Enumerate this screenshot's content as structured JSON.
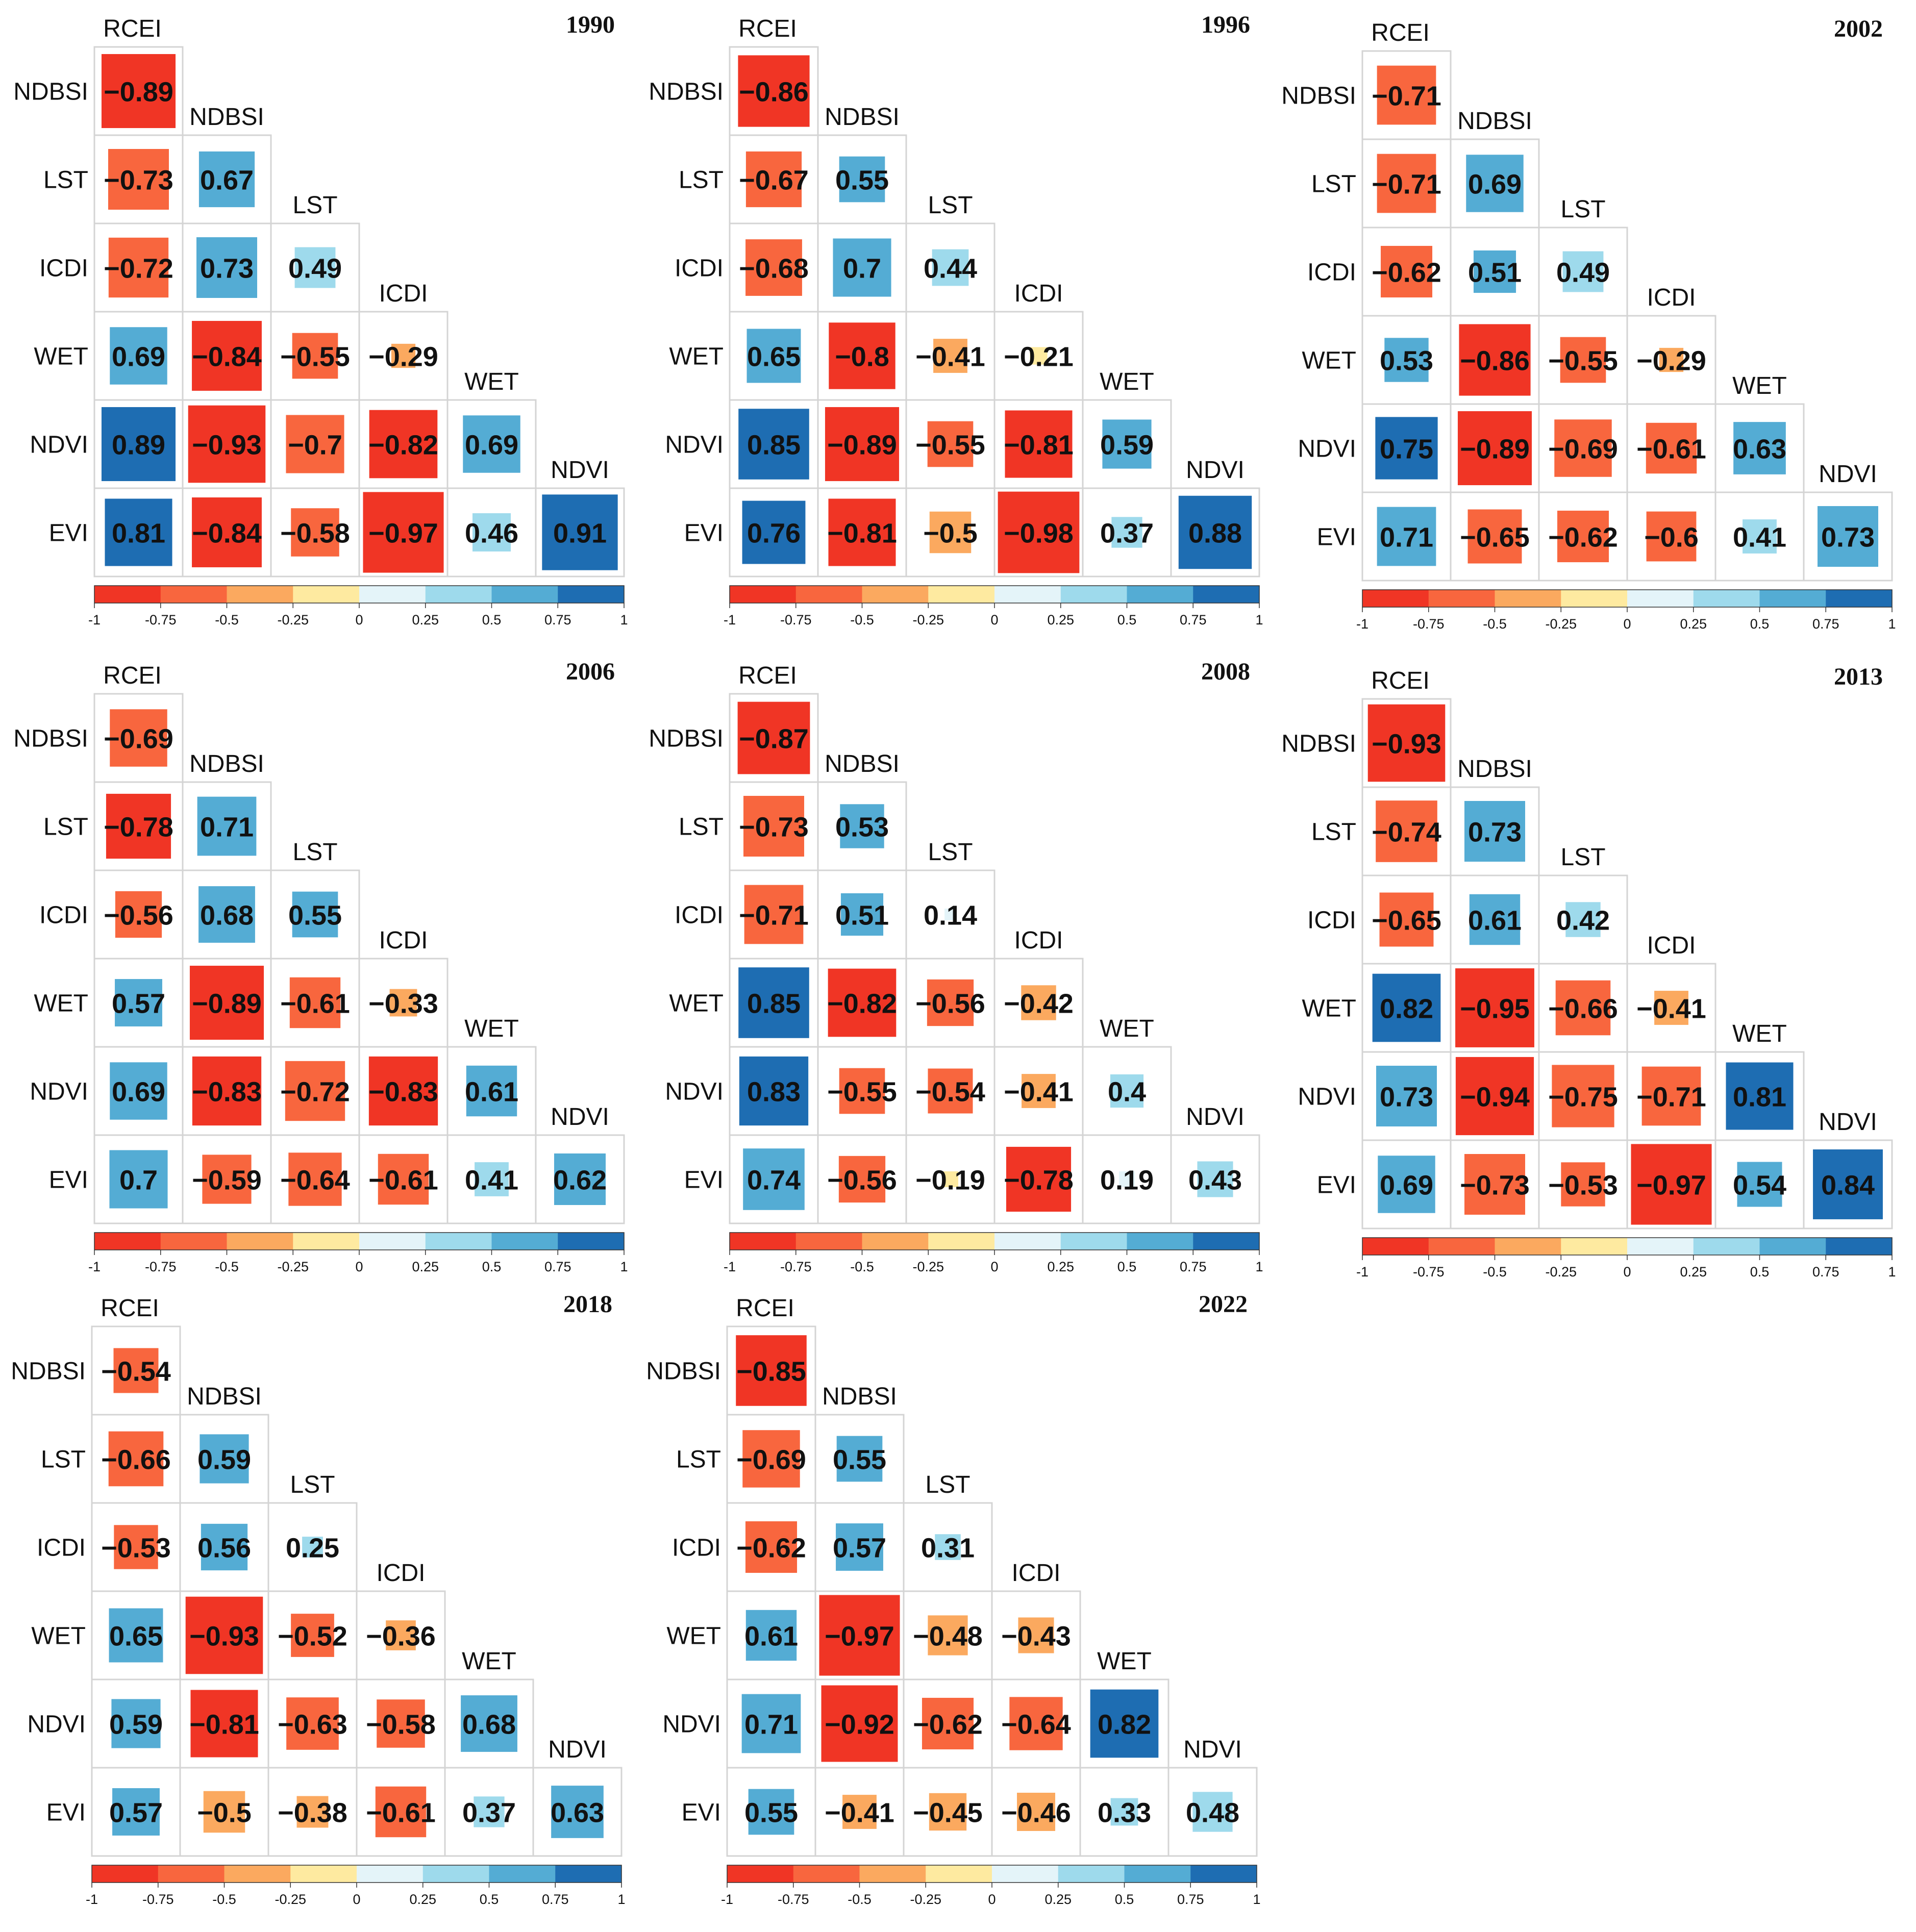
{
  "chart_data": [
    {
      "type": "heatmap",
      "title": "1990",
      "variables": [
        "RCEI",
        "NDBSI",
        "LST",
        "ICDI",
        "WET",
        "NDVI",
        "EVI"
      ],
      "rows": [
        "NDBSI",
        "LST",
        "ICDI",
        "WET",
        "NDVI",
        "EVI"
      ],
      "columns": [
        "RCEI",
        "NDBSI",
        "LST",
        "ICDI",
        "WET",
        "NDVI"
      ],
      "values": [
        [
          -0.89
        ],
        [
          -0.73,
          0.67
        ],
        [
          -0.72,
          0.73,
          0.49
        ],
        [
          0.69,
          -0.84,
          -0.55,
          -0.29
        ],
        [
          0.89,
          -0.93,
          -0.7,
          -0.82,
          0.69
        ],
        [
          0.81,
          -0.84,
          -0.58,
          -0.97,
          0.46,
          0.91
        ]
      ],
      "value_labels": [
        [
          "−0.89"
        ],
        [
          "−0.73",
          "0.67"
        ],
        [
          "−0.72",
          "0.73",
          "0.49"
        ],
        [
          "0.69",
          "−0.84",
          "−0.55",
          "−0.29"
        ],
        [
          "0.89",
          "−0.93",
          "−0.7",
          "−0.82",
          "0.69"
        ],
        [
          "0.81",
          "−0.84",
          "−0.58",
          "−0.97",
          "0.46",
          "0.91"
        ]
      ],
      "colorbar": {
        "range": [
          -1,
          1
        ],
        "ticks": [
          "-1",
          "-0.75",
          "-0.5",
          "-0.25",
          "0",
          "0.25",
          "0.5",
          "0.75",
          "1"
        ],
        "colors": [
          "#f03525",
          "#f8663e",
          "#fba95f",
          "#feeaa0",
          "#e4f4f9",
          "#9edaec",
          "#54acd4",
          "#1e6db2"
        ]
      }
    },
    {
      "type": "heatmap",
      "title": "1996",
      "variables": [
        "RCEI",
        "NDBSI",
        "LST",
        "ICDI",
        "WET",
        "NDVI",
        "EVI"
      ],
      "rows": [
        "NDBSI",
        "LST",
        "ICDI",
        "WET",
        "NDVI",
        "EVI"
      ],
      "columns": [
        "RCEI",
        "NDBSI",
        "LST",
        "ICDI",
        "WET",
        "NDVI"
      ],
      "values": [
        [
          -0.86
        ],
        [
          -0.67,
          0.55
        ],
        [
          -0.68,
          0.7,
          0.44
        ],
        [
          0.65,
          -0.8,
          -0.41,
          -0.21
        ],
        [
          0.85,
          -0.89,
          -0.55,
          -0.81,
          0.59
        ],
        [
          0.76,
          -0.81,
          -0.5,
          -0.98,
          0.37,
          0.88
        ]
      ],
      "value_labels": [
        [
          "−0.86"
        ],
        [
          "−0.67",
          "0.55"
        ],
        [
          "−0.68",
          "0.7",
          "0.44"
        ],
        [
          "0.65",
          "−0.8",
          "−0.41",
          "−0.21"
        ],
        [
          "0.85",
          "−0.89",
          "−0.55",
          "−0.81",
          "0.59"
        ],
        [
          "0.76",
          "−0.81",
          "−0.5",
          "−0.98",
          "0.37",
          "0.88"
        ]
      ],
      "colorbar": {
        "range": [
          -1,
          1
        ],
        "ticks": [
          "-1",
          "-0.75",
          "-0.5",
          "-0.25",
          "0",
          "0.25",
          "0.5",
          "0.75",
          "1"
        ],
        "colors": [
          "#f03525",
          "#f8663e",
          "#fba95f",
          "#feeaa0",
          "#e4f4f9",
          "#9edaec",
          "#54acd4",
          "#1e6db2"
        ]
      }
    },
    {
      "type": "heatmap",
      "title": "2002",
      "variables": [
        "RCEI",
        "NDBSI",
        "LST",
        "ICDI",
        "WET",
        "NDVI",
        "EVI"
      ],
      "rows": [
        "NDBSI",
        "LST",
        "ICDI",
        "WET",
        "NDVI",
        "EVI"
      ],
      "columns": [
        "RCEI",
        "NDBSI",
        "LST",
        "ICDI",
        "WET",
        "NDVI"
      ],
      "values": [
        [
          -0.71
        ],
        [
          -0.71,
          0.69
        ],
        [
          -0.62,
          0.51,
          0.49
        ],
        [
          0.53,
          -0.86,
          -0.55,
          -0.29
        ],
        [
          0.75,
          -0.89,
          -0.69,
          -0.61,
          0.63
        ],
        [
          0.71,
          -0.65,
          -0.62,
          -0.6,
          0.41,
          0.73
        ]
      ],
      "value_labels": [
        [
          "−0.71"
        ],
        [
          "−0.71",
          "0.69"
        ],
        [
          "−0.62",
          "0.51",
          "0.49"
        ],
        [
          "0.53",
          "−0.86",
          "−0.55",
          "−0.29"
        ],
        [
          "0.75",
          "−0.89",
          "−0.69",
          "−0.61",
          "0.63"
        ],
        [
          "0.71",
          "−0.65",
          "−0.62",
          "−0.6",
          "0.41",
          "0.73"
        ]
      ],
      "colorbar": {
        "range": [
          -1,
          1
        ],
        "ticks": [
          "-1",
          "-0.75",
          "-0.5",
          "-0.25",
          "0",
          "0.25",
          "0.5",
          "0.75",
          "1"
        ],
        "colors": [
          "#f03525",
          "#f8663e",
          "#fba95f",
          "#feeaa0",
          "#e4f4f9",
          "#9edaec",
          "#54acd4",
          "#1e6db2"
        ]
      }
    },
    {
      "type": "heatmap",
      "title": "2006",
      "variables": [
        "RCEI",
        "NDBSI",
        "LST",
        "ICDI",
        "WET",
        "NDVI",
        "EVI"
      ],
      "rows": [
        "NDBSI",
        "LST",
        "ICDI",
        "WET",
        "NDVI",
        "EVI"
      ],
      "columns": [
        "RCEI",
        "NDBSI",
        "LST",
        "ICDI",
        "WET",
        "NDVI"
      ],
      "values": [
        [
          -0.69
        ],
        [
          -0.78,
          0.71
        ],
        [
          -0.56,
          0.68,
          0.55
        ],
        [
          0.57,
          -0.89,
          -0.61,
          -0.33
        ],
        [
          0.69,
          -0.83,
          -0.72,
          -0.83,
          0.61
        ],
        [
          0.7,
          -0.59,
          -0.64,
          -0.61,
          0.41,
          0.62
        ]
      ],
      "value_labels": [
        [
          "−0.69"
        ],
        [
          "−0.78",
          "0.71"
        ],
        [
          "−0.56",
          "0.68",
          "0.55"
        ],
        [
          "0.57",
          "−0.89",
          "−0.61",
          "−0.33"
        ],
        [
          "0.69",
          "−0.83",
          "−0.72",
          "−0.83",
          "0.61"
        ],
        [
          "0.7",
          "−0.59",
          "−0.64",
          "−0.61",
          "0.41",
          "0.62"
        ]
      ],
      "colorbar": {
        "range": [
          -1,
          1
        ],
        "ticks": [
          "-1",
          "-0.75",
          "-0.5",
          "-0.25",
          "0",
          "0.25",
          "0.5",
          "0.75",
          "1"
        ],
        "colors": [
          "#f03525",
          "#f8663e",
          "#fba95f",
          "#feeaa0",
          "#e4f4f9",
          "#9edaec",
          "#54acd4",
          "#1e6db2"
        ]
      }
    },
    {
      "type": "heatmap",
      "title": "2008",
      "variables": [
        "RCEI",
        "NDBSI",
        "LST",
        "ICDI",
        "WET",
        "NDVI",
        "EVI"
      ],
      "rows": [
        "NDBSI",
        "LST",
        "ICDI",
        "WET",
        "NDVI",
        "EVI"
      ],
      "columns": [
        "RCEI",
        "NDBSI",
        "LST",
        "ICDI",
        "WET",
        "NDVI"
      ],
      "values": [
        [
          -0.87
        ],
        [
          -0.73,
          0.53
        ],
        [
          -0.71,
          0.51,
          0.14
        ],
        [
          0.85,
          -0.82,
          -0.56,
          -0.42
        ],
        [
          0.83,
          -0.55,
          -0.54,
          -0.41,
          0.4
        ],
        [
          0.74,
          -0.56,
          -0.19,
          -0.78,
          0.19,
          0.43
        ]
      ],
      "value_labels": [
        [
          "−0.87"
        ],
        [
          "−0.73",
          "0.53"
        ],
        [
          "−0.71",
          "0.51",
          "0.14"
        ],
        [
          "0.85",
          "−0.82",
          "−0.56",
          "−0.42"
        ],
        [
          "0.83",
          "−0.55",
          "−0.54",
          "−0.41",
          "0.4"
        ],
        [
          "0.74",
          "−0.56",
          "−0.19",
          "−0.78",
          "0.19",
          "0.43"
        ]
      ],
      "colorbar": {
        "range": [
          -1,
          1
        ],
        "ticks": [
          "-1",
          "-0.75",
          "-0.5",
          "-0.25",
          "0",
          "0.25",
          "0.5",
          "0.75",
          "1"
        ],
        "colors": [
          "#f03525",
          "#f8663e",
          "#fba95f",
          "#feeaa0",
          "#e4f4f9",
          "#9edaec",
          "#54acd4",
          "#1e6db2"
        ]
      }
    },
    {
      "type": "heatmap",
      "title": "2013",
      "variables": [
        "RCEI",
        "NDBSI",
        "LST",
        "ICDI",
        "WET",
        "NDVI",
        "EVI"
      ],
      "rows": [
        "NDBSI",
        "LST",
        "ICDI",
        "WET",
        "NDVI",
        "EVI"
      ],
      "columns": [
        "RCEI",
        "NDBSI",
        "LST",
        "ICDI",
        "WET",
        "NDVI"
      ],
      "values": [
        [
          -0.93
        ],
        [
          -0.74,
          0.73
        ],
        [
          -0.65,
          0.61,
          0.42
        ],
        [
          0.82,
          -0.95,
          -0.66,
          -0.41
        ],
        [
          0.73,
          -0.94,
          -0.75,
          -0.71,
          0.81
        ],
        [
          0.69,
          -0.73,
          -0.53,
          -0.97,
          0.54,
          0.84
        ]
      ],
      "value_labels": [
        [
          "−0.93"
        ],
        [
          "−0.74",
          "0.73"
        ],
        [
          "−0.65",
          "0.61",
          "0.42"
        ],
        [
          "0.82",
          "−0.95",
          "−0.66",
          "−0.41"
        ],
        [
          "0.73",
          "−0.94",
          "−0.75",
          "−0.71",
          "0.81"
        ],
        [
          "0.69",
          "−0.73",
          "−0.53",
          "−0.97",
          "0.54",
          "0.84"
        ]
      ],
      "colorbar": {
        "range": [
          -1,
          1
        ],
        "ticks": [
          "-1",
          "-0.75",
          "-0.5",
          "-0.25",
          "0",
          "0.25",
          "0.5",
          "0.75",
          "1"
        ],
        "colors": [
          "#f03525",
          "#f8663e",
          "#fba95f",
          "#feeaa0",
          "#e4f4f9",
          "#9edaec",
          "#54acd4",
          "#1e6db2"
        ]
      }
    },
    {
      "type": "heatmap",
      "title": "2018",
      "variables": [
        "RCEI",
        "NDBSI",
        "LST",
        "ICDI",
        "WET",
        "NDVI",
        "EVI"
      ],
      "rows": [
        "NDBSI",
        "LST",
        "ICDI",
        "WET",
        "NDVI",
        "EVI"
      ],
      "columns": [
        "RCEI",
        "NDBSI",
        "LST",
        "ICDI",
        "WET",
        "NDVI"
      ],
      "values": [
        [
          -0.54
        ],
        [
          -0.66,
          0.59
        ],
        [
          -0.53,
          0.56,
          0.25
        ],
        [
          0.65,
          -0.93,
          -0.52,
          -0.36
        ],
        [
          0.59,
          -0.81,
          -0.63,
          -0.58,
          0.68
        ],
        [
          0.57,
          -0.5,
          -0.38,
          -0.61,
          0.37,
          0.63
        ]
      ],
      "value_labels": [
        [
          "−0.54"
        ],
        [
          "−0.66",
          "0.59"
        ],
        [
          "−0.53",
          "0.56",
          "0.25"
        ],
        [
          "0.65",
          "−0.93",
          "−0.52",
          "−0.36"
        ],
        [
          "0.59",
          "−0.81",
          "−0.63",
          "−0.58",
          "0.68"
        ],
        [
          "0.57",
          "−0.5",
          "−0.38",
          "−0.61",
          "0.37",
          "0.63"
        ]
      ],
      "colorbar": {
        "range": [
          -1,
          1
        ],
        "ticks": [
          "-1",
          "-0.75",
          "-0.5",
          "-0.25",
          "0",
          "0.25",
          "0.5",
          "0.75",
          "1"
        ],
        "colors": [
          "#f03525",
          "#f8663e",
          "#fba95f",
          "#feeaa0",
          "#e4f4f9",
          "#9edaec",
          "#54acd4",
          "#1e6db2"
        ]
      }
    },
    {
      "type": "heatmap",
      "title": "2022",
      "variables": [
        "RCEI",
        "NDBSI",
        "LST",
        "ICDI",
        "WET",
        "NDVI",
        "EVI"
      ],
      "rows": [
        "NDBSI",
        "LST",
        "ICDI",
        "WET",
        "NDVI",
        "EVI"
      ],
      "columns": [
        "RCEI",
        "NDBSI",
        "LST",
        "ICDI",
        "WET",
        "NDVI"
      ],
      "values": [
        [
          -0.85
        ],
        [
          -0.69,
          0.55
        ],
        [
          -0.62,
          0.57,
          0.31
        ],
        [
          0.61,
          -0.97,
          -0.48,
          -0.43
        ],
        [
          0.71,
          -0.92,
          -0.62,
          -0.64,
          0.82
        ],
        [
          0.55,
          -0.41,
          -0.45,
          -0.46,
          0.33,
          0.48
        ]
      ],
      "value_labels": [
        [
          "−0.85"
        ],
        [
          "−0.69",
          "0.55"
        ],
        [
          "−0.62",
          "0.57",
          "0.31"
        ],
        [
          "0.61",
          "−0.97",
          "−0.48",
          "−0.43"
        ],
        [
          "0.71",
          "−0.92",
          "−0.62",
          "−0.64",
          "0.82"
        ],
        [
          "0.55",
          "−0.41",
          "−0.45",
          "−0.46",
          "0.33",
          "0.48"
        ]
      ],
      "colorbar": {
        "range": [
          -1,
          1
        ],
        "ticks": [
          "-1",
          "-0.75",
          "-0.5",
          "-0.25",
          "0",
          "0.25",
          "0.5",
          "0.75",
          "1"
        ],
        "colors": [
          "#f03525",
          "#f8663e",
          "#fba95f",
          "#feeaa0",
          "#e4f4f9",
          "#9edaec",
          "#54acd4",
          "#1e6db2"
        ]
      }
    }
  ]
}
